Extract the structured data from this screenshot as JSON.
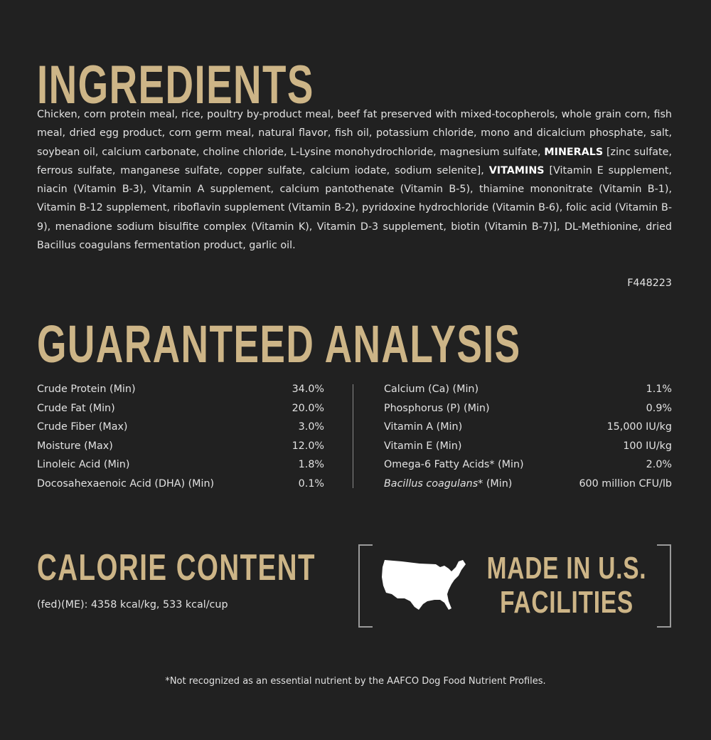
{
  "ingredients": {
    "title": "INGREDIENTS",
    "text_part1": "Chicken, corn protein meal, rice, poultry by-product meal, beef fat preserved with mixed-tocopherols, whole grain corn, fish meal, dried egg product, corn germ meal, natural flavor, fish oil, potassium chloride, mono and dicalcium phosphate, salt, soybean oil, calcium carbonate, choline chloride, L-Lysine monohydrochloride, magnesium sulfate, ",
    "minerals_label": "MINERALS",
    "text_part2": " [zinc sulfate, ferrous sulfate, manganese sulfate, copper sulfate, calcium iodate, sodium selenite], ",
    "vitamins_label": "VITAMINS",
    "text_part3": " [Vitamin E supplement, niacin (Vitamin B-3), Vitamin A supplement, calcium pantothenate (Vitamin B-5), thiamine mononitrate (Vitamin B-1), Vitamin B-12 supplement, riboflavin supplement (Vitamin B-2), pyridoxine hydrochloride (Vitamin B-6), folic acid (Vitamin B-9), menadione sodium bisulfite complex (Vitamin K), Vitamin D-3 supplement, biotin (Vitamin B-7)], DL-Methionine, dried Bacillus coagulans fermentation product, garlic oil.",
    "code": "F448223"
  },
  "analysis": {
    "title": "GUARANTEED ANALYSIS",
    "left": [
      {
        "label": "Crude Protein (Min)",
        "value": "34.0%"
      },
      {
        "label": "Crude Fat (Min)",
        "value": "20.0%"
      },
      {
        "label": "Crude Fiber (Max)",
        "value": "3.0%"
      },
      {
        "label": "Moisture (Max)",
        "value": "12.0%"
      },
      {
        "label": "Linoleic Acid (Min)",
        "value": "1.8%"
      },
      {
        "label": "Docosahexaenoic Acid (DHA) (Min)",
        "value": "0.1%"
      }
    ],
    "right": [
      {
        "label": "Calcium (Ca) (Min)",
        "value": "1.1%"
      },
      {
        "label": "Phosphorus (P) (Min)",
        "value": "0.9%"
      },
      {
        "label": "Vitamin A (Min)",
        "value": "15,000 IU/kg"
      },
      {
        "label": "Vitamin E (Min)",
        "value": "100 IU/kg"
      },
      {
        "label": "Omega-6 Fatty Acids* (Min)",
        "value": "2.0%"
      }
    ],
    "last_right": {
      "italic_label": "Bacillus coagulans",
      "label_suffix": "* (Min)",
      "value": "600 million CFU/lb"
    }
  },
  "calorie": {
    "title": "CALORIE CONTENT",
    "text": "(fed)(ME): 4358 kcal/kg, 533 kcal/cup"
  },
  "badge": {
    "icon": "usa-map-icon",
    "line1": "MADE IN U.S.",
    "line2": "FACILITIES",
    "gold": "#cdb587"
  },
  "footnote": "*Not recognized as an essential nutrient by the AAFCO Dog Food Nutrient Profiles.",
  "colors": {
    "background": "#212121",
    "heading": "#cdb587",
    "text": "#e2e2e2"
  }
}
